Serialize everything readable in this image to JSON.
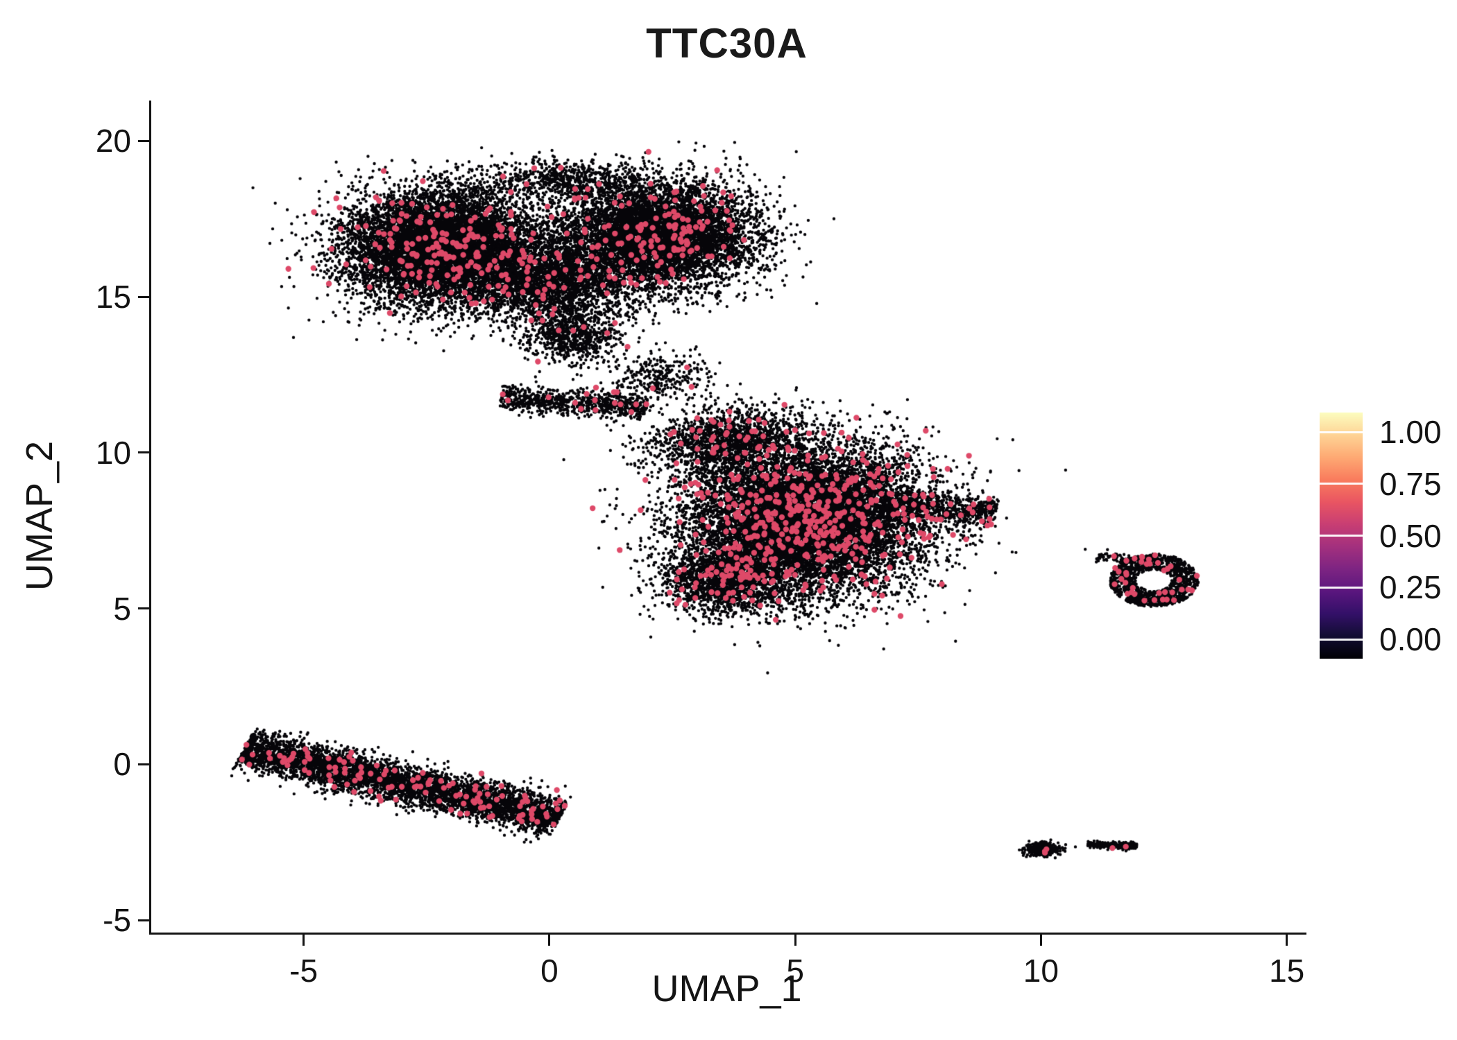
{
  "title": "TTC30A",
  "axes": {
    "xlabel": "UMAP_1",
    "ylabel": "UMAP_2",
    "xticks": [
      -5,
      0,
      5,
      10,
      15
    ],
    "yticks": [
      -5,
      0,
      5,
      10,
      15,
      20
    ],
    "xlim": [
      -8.1,
      15.4
    ],
    "ylim": [
      -5.4,
      21.3
    ]
  },
  "legend": {
    "labels": [
      "1.00",
      "0.75",
      "0.50",
      "0.25",
      "0.00"
    ],
    "values": [
      1.0,
      0.75,
      0.5,
      0.25,
      0.0
    ],
    "colormap_bottom_to_top": [
      "#000004",
      "#120d32",
      "#331068",
      "#5a167e",
      "#7d2482",
      "#a3307e",
      "#c83e73",
      "#e95562",
      "#f97c5d",
      "#fea973",
      "#fed395",
      "#fcfdbf"
    ]
  },
  "chart_data": {
    "type": "scatter",
    "title": "TTC30A",
    "xlabel": "UMAP_1",
    "ylabel": "UMAP_2",
    "xlim": [
      -8.1,
      15.4
    ],
    "ylim": [
      -5.4,
      21.3
    ],
    "grid": false,
    "legend_position": "right",
    "colors": {
      "non_expressing_point": "#060509",
      "expressing_point": "#de4968"
    },
    "point_radius_px": 2.2,
    "expressing_point_radius_px": 4.2,
    "clusters": [
      {
        "name": "upper-left-lobe",
        "cx": -2.2,
        "cy": 16.6,
        "rx": 2.0,
        "ry": 1.8,
        "rot": 0,
        "n": 9000,
        "red": 0.02,
        "shape": "gauss"
      },
      {
        "name": "upper-right-lobe",
        "cx": 2.2,
        "cy": 17.0,
        "rx": 2.0,
        "ry": 1.7,
        "rot": 0,
        "n": 7000,
        "red": 0.02,
        "shape": "gauss"
      },
      {
        "name": "upper-bridge",
        "cx": 0.0,
        "cy": 15.5,
        "rx": 1.7,
        "ry": 1.3,
        "rot": 0,
        "n": 2600,
        "red": 0.015,
        "shape": "gauss"
      },
      {
        "name": "upper-top-fringe",
        "cx": 0.3,
        "cy": 18.7,
        "rx": 1.7,
        "ry": 0.7,
        "rot": 0,
        "n": 700,
        "red": 0.01,
        "shape": "gauss"
      },
      {
        "name": "upper-bottom-tail",
        "cx": 0.5,
        "cy": 13.8,
        "rx": 1.0,
        "ry": 0.9,
        "rot": 0,
        "n": 750,
        "red": 0.012,
        "shape": "gauss"
      },
      {
        "name": "connector-streak",
        "cx": 0.5,
        "cy": 11.6,
        "rx": 1.5,
        "ry": 0.4,
        "rot": -6,
        "n": 780,
        "red": 0.02,
        "shape": "uniform-x"
      },
      {
        "name": "connector-sparse",
        "cx": 2.3,
        "cy": 12.4,
        "rx": 1.0,
        "ry": 0.9,
        "rot": 0,
        "n": 300,
        "red": 0.01,
        "shape": "gauss"
      },
      {
        "name": "central-main",
        "cx": 5.2,
        "cy": 7.9,
        "rx": 2.4,
        "ry": 2.3,
        "rot": 0,
        "n": 12000,
        "red": 0.035,
        "shape": "gauss"
      },
      {
        "name": "central-upper-lobe",
        "cx": 3.6,
        "cy": 10.4,
        "rx": 1.5,
        "ry": 1.0,
        "rot": 10,
        "n": 1500,
        "red": 0.03,
        "shape": "gauss"
      },
      {
        "name": "central-right-tip",
        "cx": 7.9,
        "cy": 8.2,
        "rx": 1.2,
        "ry": 0.5,
        "rot": -6,
        "n": 700,
        "red": 0.03,
        "shape": "uniform-x"
      },
      {
        "name": "central-lower-left",
        "cx": 3.6,
        "cy": 5.9,
        "rx": 1.3,
        "ry": 1.1,
        "rot": 0,
        "n": 1800,
        "red": 0.03,
        "shape": "gauss"
      },
      {
        "name": "right-ring",
        "cx": 12.3,
        "cy": 5.9,
        "rx": 0.9,
        "ry": 0.85,
        "rot": 0,
        "n": 1200,
        "red": 0.03,
        "shape": "ring",
        "hole": 0.4
      },
      {
        "name": "right-ring-fringe",
        "cx": 11.6,
        "cy": 6.6,
        "rx": 0.45,
        "ry": 0.18,
        "rot": -15,
        "n": 80,
        "red": 0.02,
        "shape": "uniform-x"
      },
      {
        "name": "lower-left-streak",
        "cx": -3.0,
        "cy": -0.6,
        "rx": 3.4,
        "ry": 0.62,
        "rot": -19,
        "n": 4800,
        "red": 0.025,
        "shape": "uniform-x"
      },
      {
        "name": "bottom-small-left",
        "cx": 10.05,
        "cy": -2.72,
        "rx": 0.32,
        "ry": 0.2,
        "rot": 0,
        "n": 380,
        "red": 0.008,
        "shape": "gauss"
      },
      {
        "name": "bottom-small-right",
        "cx": 11.45,
        "cy": -2.6,
        "rx": 0.5,
        "ry": 0.11,
        "rot": -3,
        "n": 260,
        "red": 0.008,
        "shape": "uniform-x"
      }
    ],
    "outliers": [
      [
        6.8,
        3.7
      ],
      [
        9.3,
        7.9
      ],
      [
        1.1,
        12.9
      ],
      [
        -0.2,
        12.6
      ],
      [
        3.2,
        12.7
      ],
      [
        10.7,
        -2.65
      ],
      [
        10.9,
        6.9
      ],
      [
        -4.6,
        14.2
      ]
    ]
  }
}
